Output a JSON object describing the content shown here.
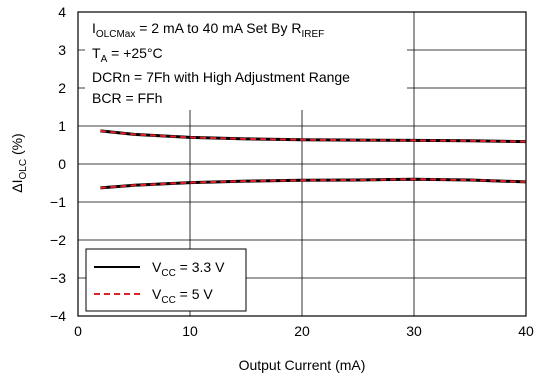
{
  "chart_data": {
    "type": "line",
    "xlabel": "Output Current (mA)",
    "ylabel": "ΔI_OLC (%)",
    "xlim": [
      0,
      40
    ],
    "ylim": [
      -4,
      4
    ],
    "x_ticks": [
      "0",
      "10",
      "20",
      "30",
      "40"
    ],
    "y_ticks": [
      "4",
      "3",
      "2",
      "1",
      "0",
      "−1",
      "−2",
      "−3",
      "−4"
    ],
    "grid": true,
    "legend_position": "bottom-left",
    "annotations": [
      "I_OLCMax = 2 mA to 40 mA Set By R_IREF",
      "T_A = +25°C",
      "DCRn = 7Fh with High Adjustment Range",
      "BCR = FFh"
    ],
    "series": [
      {
        "name": "V_CC = 3.3 V",
        "color": "#000000",
        "style": "solid",
        "x": [
          2,
          5,
          10,
          15,
          20,
          25,
          30,
          35,
          40
        ],
        "y": [
          0.87,
          0.78,
          0.7,
          0.66,
          0.64,
          0.63,
          0.62,
          0.61,
          0.59
        ]
      },
      {
        "name": "V_CC = 3.3 V",
        "color": "#000000",
        "style": "solid",
        "x": [
          2,
          5,
          10,
          15,
          20,
          25,
          30,
          35,
          40
        ],
        "y": [
          -0.63,
          -0.56,
          -0.49,
          -0.45,
          -0.43,
          -0.42,
          -0.4,
          -0.42,
          -0.47
        ]
      },
      {
        "name": "V_CC = 5 V",
        "color": "#e0202a",
        "style": "dashed",
        "x": [
          2,
          5,
          10,
          15,
          20,
          25,
          30,
          35,
          40
        ],
        "y": [
          0.87,
          0.78,
          0.7,
          0.66,
          0.64,
          0.63,
          0.62,
          0.61,
          0.59
        ]
      },
      {
        "name": "V_CC = 5 V",
        "color": "#e0202a",
        "style": "dashed",
        "x": [
          2,
          5,
          10,
          15,
          20,
          25,
          30,
          35,
          40
        ],
        "y": [
          -0.63,
          -0.56,
          -0.49,
          -0.45,
          -0.43,
          -0.42,
          -0.4,
          -0.42,
          -0.47
        ]
      }
    ],
    "legend": [
      {
        "label": "V_CC = 3.3 V",
        "color": "#000000",
        "style": "solid"
      },
      {
        "label": "V_CC = 5 V",
        "color": "#e0202a",
        "style": "dashed"
      }
    ]
  }
}
